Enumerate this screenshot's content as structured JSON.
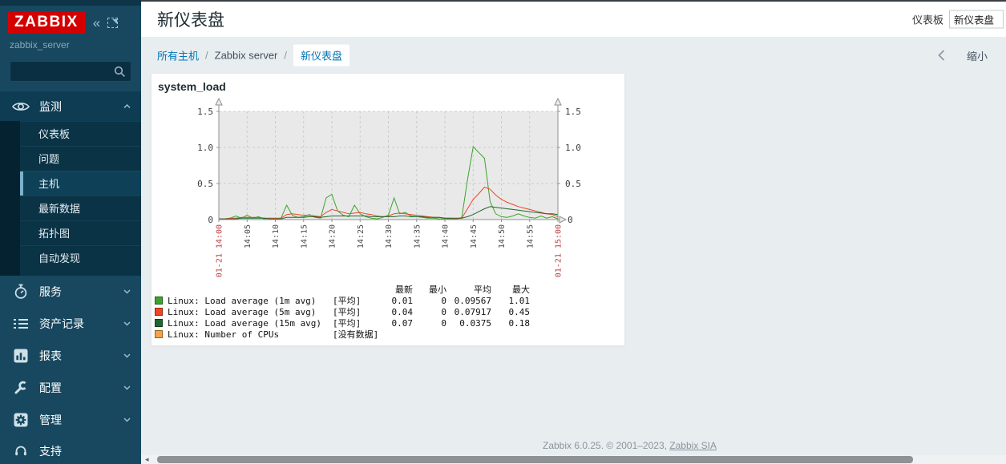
{
  "sidebar": {
    "logo": "ZABBIX",
    "server_name": "zabbix_server",
    "search_placeholder": "",
    "menu": [
      {
        "label": "监测"
      },
      {
        "label": "服务"
      },
      {
        "label": "资产记录"
      },
      {
        "label": "报表"
      },
      {
        "label": "配置"
      },
      {
        "label": "管理"
      }
    ],
    "submenu": [
      {
        "label": "仪表板"
      },
      {
        "label": "问题"
      },
      {
        "label": "主机"
      },
      {
        "label": "最新数据"
      },
      {
        "label": "拓扑图"
      },
      {
        "label": "自动发现"
      }
    ],
    "support_label": "支持"
  },
  "header": {
    "title": "新仪表盘",
    "dashboard_label": "仪表板",
    "dashboard_value": "新仪表盘"
  },
  "toolbar": {
    "breadcrumb": [
      "所有主机",
      "Zabbix server",
      "新仪表盘"
    ],
    "separator": "/",
    "collapse_label": "缩小"
  },
  "widget": {
    "title": "system_load"
  },
  "chart_data": {
    "type": "line",
    "title": "system_load",
    "ylim": [
      0,
      1.5
    ],
    "y_ticks": [
      "0",
      "0.5",
      "1.0",
      "1.5"
    ],
    "x_tick_labels": [
      "01-21 14:00",
      "14:05",
      "14:10",
      "14:15",
      "14:20",
      "14:25",
      "14:30",
      "14:35",
      "14:40",
      "14:45",
      "14:50",
      "14:55",
      "01-21 15:00"
    ],
    "x_minutes": [
      0,
      1,
      2,
      3,
      4,
      5,
      6,
      7,
      8,
      9,
      10,
      11,
      12,
      13,
      14,
      15,
      16,
      17,
      18,
      19,
      20,
      21,
      22,
      23,
      24,
      25,
      26,
      27,
      28,
      29,
      30,
      31,
      32,
      33,
      34,
      35,
      36,
      37,
      38,
      39,
      40,
      41,
      42,
      43,
      44,
      45,
      46,
      47,
      48,
      49,
      50,
      51,
      52,
      53,
      54,
      55,
      56,
      57,
      58,
      59,
      60
    ],
    "grid": true,
    "legend_position": "bottom",
    "series": [
      {
        "name": "Linux: Load average (1m avg)",
        "color": "#3BA42C",
        "values": [
          0.01,
          0.01,
          0.02,
          0.05,
          0.02,
          0.06,
          0.02,
          0.04,
          0.01,
          0.02,
          0.01,
          0.02,
          0.2,
          0.06,
          0.03,
          0.04,
          0.07,
          0.03,
          0.02,
          0.3,
          0.35,
          0.12,
          0.06,
          0.04,
          0.2,
          0.08,
          0.04,
          0.02,
          0.01,
          0.03,
          0.06,
          0.3,
          0.08,
          0.1,
          0.05,
          0.04,
          0.03,
          0.02,
          0.02,
          0.01,
          0.01,
          0.01,
          0.01,
          0.03,
          0.55,
          1.01,
          0.93,
          0.85,
          0.25,
          0.08,
          0.04,
          0.03,
          0.05,
          0.08,
          0.05,
          0.03,
          0.02,
          0.05,
          0.02,
          0.04,
          0.01
        ]
      },
      {
        "name": "Linux: Load average (5m avg)",
        "color": "#EF4623",
        "values": [
          0.01,
          0.01,
          0.02,
          0.02,
          0.03,
          0.03,
          0.03,
          0.03,
          0.02,
          0.02,
          0.02,
          0.02,
          0.07,
          0.08,
          0.07,
          0.06,
          0.06,
          0.05,
          0.04,
          0.1,
          0.14,
          0.12,
          0.1,
          0.08,
          0.09,
          0.1,
          0.08,
          0.07,
          0.05,
          0.04,
          0.05,
          0.08,
          0.09,
          0.08,
          0.07,
          0.06,
          0.05,
          0.04,
          0.03,
          0.03,
          0.02,
          0.02,
          0.01,
          0.02,
          0.15,
          0.28,
          0.36,
          0.45,
          0.42,
          0.34,
          0.28,
          0.24,
          0.21,
          0.18,
          0.16,
          0.14,
          0.12,
          0.1,
          0.08,
          0.07,
          0.04
        ]
      },
      {
        "name": "Linux: Load average (15m avg)",
        "color": "#20672F",
        "values": [
          0.01,
          0.01,
          0.01,
          0.01,
          0.02,
          0.02,
          0.02,
          0.02,
          0.02,
          0.01,
          0.01,
          0.01,
          0.03,
          0.03,
          0.03,
          0.03,
          0.04,
          0.04,
          0.03,
          0.04,
          0.05,
          0.05,
          0.05,
          0.05,
          0.05,
          0.05,
          0.05,
          0.04,
          0.04,
          0.04,
          0.04,
          0.04,
          0.05,
          0.05,
          0.04,
          0.04,
          0.04,
          0.03,
          0.03,
          0.03,
          0.02,
          0.02,
          0.02,
          0.02,
          0.04,
          0.07,
          0.11,
          0.15,
          0.18,
          0.17,
          0.16,
          0.15,
          0.14,
          0.13,
          0.12,
          0.11,
          0.1,
          0.09,
          0.08,
          0.08,
          0.07
        ]
      },
      {
        "name": "Linux: Number of CPUs",
        "color": "#F5A442",
        "values": []
      }
    ]
  },
  "legend": {
    "headers": [
      "最新",
      "最小",
      "平均",
      "最大"
    ],
    "rows": [
      {
        "label": "Linux: Load average (1m avg)",
        "function": "[平均]",
        "last": "0.01",
        "min": "0",
        "avg": "0.09567",
        "max": "1.01"
      },
      {
        "label": "Linux: Load average (5m avg)",
        "function": "[平均]",
        "last": "0.04",
        "min": "0",
        "avg": "0.07917",
        "max": "0.45"
      },
      {
        "label": "Linux: Load average (15m avg)",
        "function": "[平均]",
        "last": "0.07",
        "min": "0",
        "avg": "0.0375",
        "max": "0.18"
      },
      {
        "label": "Linux: Number of CPUs",
        "function": "[没有数据]",
        "last": "",
        "min": "",
        "avg": "",
        "max": ""
      }
    ]
  },
  "footer": {
    "text": "Zabbix 6.0.25. © 2001–2023, ",
    "link_label": "Zabbix SIA"
  }
}
